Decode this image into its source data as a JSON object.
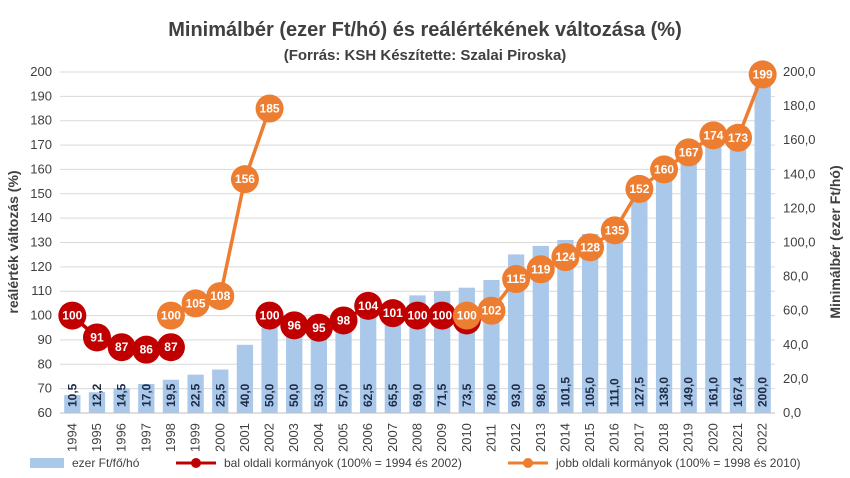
{
  "chart_data": {
    "type": "bar",
    "title": "Minimálbér (ezer Ft/hó) és reálértékének változása (%)",
    "subtitle": "(Forrás: KSH Készítette: Szalai Piroska)",
    "ylabel_left": "reálérték változás (%)",
    "ylabel_right": "Minimálbér (ezer Ft/hó)",
    "ylim_left": [
      60,
      200
    ],
    "ylim_right": [
      0,
      200
    ],
    "yticks_left": [
      "60",
      "70",
      "80",
      "90",
      "100",
      "110",
      "120",
      "130",
      "140",
      "150",
      "160",
      "170",
      "180",
      "190",
      "200"
    ],
    "yticks_right": [
      "0,0",
      "20,0",
      "40,0",
      "60,0",
      "80,0",
      "100,0",
      "120,0",
      "140,0",
      "160,0",
      "180,0",
      "200,0"
    ],
    "categories": [
      "1994",
      "1995",
      "1996",
      "1997",
      "1998",
      "1999",
      "2000",
      "2001",
      "2002",
      "2003",
      "2004",
      "2005",
      "2006",
      "2007",
      "2008",
      "2009",
      "2010",
      "2011",
      "2012",
      "2013",
      "2014",
      "2015",
      "2016",
      "2017",
      "2018",
      "2019",
      "2020",
      "2021",
      "2022"
    ],
    "bars": {
      "name": "ezer Ft/fő/hó",
      "color": "#a9c8ea",
      "values": [
        10.5,
        12.2,
        14.5,
        17.0,
        19.5,
        22.5,
        25.5,
        40.0,
        50.0,
        50.0,
        53.0,
        57.0,
        62.5,
        65.5,
        69.0,
        71.5,
        73.5,
        78.0,
        93.0,
        98.0,
        101.5,
        105.0,
        111.0,
        127.5,
        138.0,
        149.0,
        161.0,
        167.4,
        200.0
      ],
      "labels": [
        "10,5",
        "12,2",
        "14,5",
        "17,0",
        "19,5",
        "22,5",
        "25,5",
        "40,0",
        "50,0",
        "50,0",
        "53,0",
        "57,0",
        "62,5",
        "65,5",
        "69,0",
        "71,5",
        "73,5",
        "78,0",
        "93,0",
        "98,0",
        "101,5",
        "105,0",
        "111,0",
        "127,5",
        "138,0",
        "149,0",
        "161,0",
        "167,4",
        "200,0"
      ]
    },
    "line_series": [
      {
        "name": "bal oldali kormányok (100% = 1994 és 2002)",
        "color": "#c00000",
        "segments": [
          {
            "x": [
              "1994",
              "1995",
              "1996",
              "1997",
              "1998"
            ],
            "values": [
              100,
              91,
              87,
              86,
              87
            ]
          },
          {
            "x": [
              "2002",
              "2003",
              "2004",
              "2005",
              "2006",
              "2007",
              "2008",
              "2009",
              "2010"
            ],
            "values": [
              100,
              96,
              95,
              98,
              104,
              101,
              100,
              100,
              98
            ]
          }
        ]
      },
      {
        "name": "jobb oldali kormányok (100% = 1998 és 2010)",
        "color": "#ed7d31",
        "segments": [
          {
            "x": [
              "1998",
              "1999",
              "2000",
              "2001",
              "2002"
            ],
            "values": [
              100,
              105,
              108,
              156,
              185
            ]
          },
          {
            "x": [
              "2010",
              "2011",
              "2012",
              "2013",
              "2014",
              "2015",
              "2016",
              "2017",
              "2018",
              "2019",
              "2020",
              "2021",
              "2022"
            ],
            "values": [
              100,
              102,
              115,
              119,
              124,
              128,
              135,
              152,
              160,
              167,
              174,
              173,
              199
            ]
          }
        ]
      }
    ],
    "legend_position": "bottom",
    "grid": true
  }
}
